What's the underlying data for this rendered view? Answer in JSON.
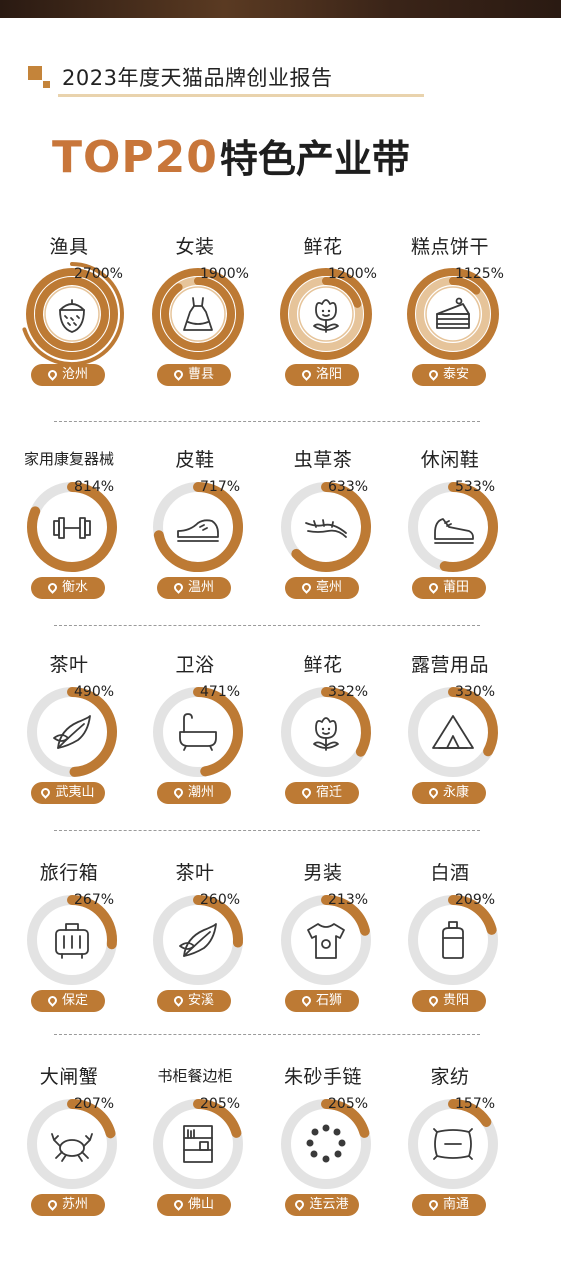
{
  "header": {
    "title": "2023年度天猫品牌创业报告"
  },
  "big_title": {
    "top20": "TOP20",
    "rest": "特色产业带"
  },
  "colors": {
    "accent": "#bd7a34",
    "accent_light": "#e6c49a",
    "ring_bg": "#e3e3e3"
  },
  "chart_data": {
    "type": "radial_bar",
    "title": "TOP20特色产业带",
    "unit": "%",
    "items": [
      {
        "category": "渔具",
        "city": "沧州",
        "value": 2700,
        "label": "2700%",
        "icon": "acorn-icon"
      },
      {
        "category": "女装",
        "city": "曹县",
        "value": 1900,
        "label": "1900%",
        "icon": "dress-icon"
      },
      {
        "category": "鲜花",
        "city": "洛阳",
        "value": 1200,
        "label": "1200%",
        "icon": "flower-icon"
      },
      {
        "category": "糕点饼干",
        "city": "泰安",
        "value": 1125,
        "label": "1125%",
        "icon": "cake-icon"
      },
      {
        "category": "家用康复器械",
        "city": "衡水",
        "value": 814,
        "label": "814%",
        "icon": "dumbbell-icon"
      },
      {
        "category": "皮鞋",
        "city": "温州",
        "value": 717,
        "label": "717%",
        "icon": "leather-shoe-icon"
      },
      {
        "category": "虫草茶",
        "city": "亳州",
        "value": 633,
        "label": "633%",
        "icon": "cordyceps-icon"
      },
      {
        "category": "休闲鞋",
        "city": "莆田",
        "value": 533,
        "label": "533%",
        "icon": "sneaker-icon"
      },
      {
        "category": "茶叶",
        "city": "武夷山",
        "value": 490,
        "label": "490%",
        "icon": "tea-leaf-icon"
      },
      {
        "category": "卫浴",
        "city": "潮州",
        "value": 471,
        "label": "471%",
        "icon": "bathtub-icon"
      },
      {
        "category": "鲜花",
        "city": "宿迁",
        "value": 332,
        "label": "332%",
        "icon": "flower-icon"
      },
      {
        "category": "露营用品",
        "city": "永康",
        "value": 330,
        "label": "330%",
        "icon": "tent-icon"
      },
      {
        "category": "旅行箱",
        "city": "保定",
        "value": 267,
        "label": "267%",
        "icon": "suitcase-icon"
      },
      {
        "category": "茶叶",
        "city": "安溪",
        "value": 260,
        "label": "260%",
        "icon": "tea-leaf-icon"
      },
      {
        "category": "男装",
        "city": "石狮",
        "value": 213,
        "label": "213%",
        "icon": "tshirt-icon"
      },
      {
        "category": "白酒",
        "city": "贵阳",
        "value": 209,
        "label": "209%",
        "icon": "liquor-jar-icon"
      },
      {
        "category": "大闸蟹",
        "city": "苏州",
        "value": 207,
        "label": "207%",
        "icon": "crab-icon"
      },
      {
        "category": "书柜餐边柜",
        "city": "佛山",
        "value": 205,
        "label": "205%",
        "icon": "bookcase-icon"
      },
      {
        "category": "朱砂手链",
        "city": "连云港",
        "value": 205,
        "label": "205%",
        "icon": "bead-bracelet-icon"
      },
      {
        "category": "家纺",
        "city": "南通",
        "value": 157,
        "label": "157%",
        "icon": "pillow-icon"
      }
    ]
  }
}
